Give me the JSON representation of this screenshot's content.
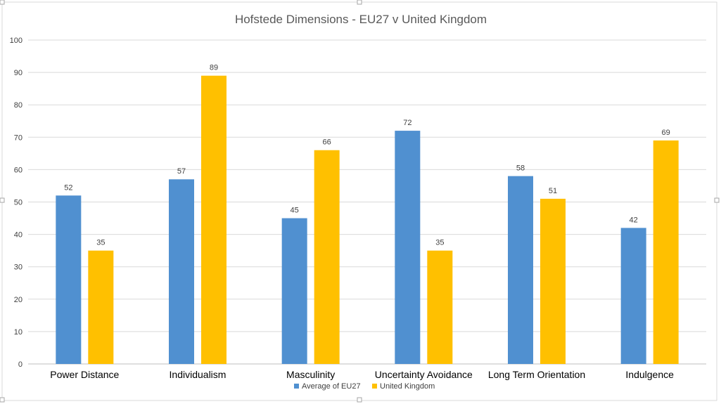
{
  "chart_data": {
    "type": "bar",
    "title": "Hofstede Dimensions - EU27 v United Kingdom",
    "xlabel": "",
    "ylabel": "",
    "ylim": [
      0,
      100
    ],
    "yticks": [
      0,
      10,
      20,
      30,
      40,
      50,
      60,
      70,
      80,
      90,
      100
    ],
    "categories": [
      "Power Distance",
      "Individualism",
      "Masculinity",
      "Uncertainty Avoidance",
      "Long Term Orientation",
      "Indulgence"
    ],
    "series": [
      {
        "name": "Average of EU27",
        "values": [
          52,
          57,
          45,
          72,
          58,
          42
        ],
        "labels": [
          "52",
          "57",
          "45",
          "72",
          "58",
          "42"
        ],
        "color": "#5090D0"
      },
      {
        "name": "United Kingdom",
        "values": [
          35,
          89,
          66,
          35,
          51,
          69
        ],
        "labels": [
          "35",
          "89",
          "66",
          "35",
          "51",
          "69"
        ],
        "color": "#FFC000"
      }
    ],
    "grid": true,
    "legend_position": "bottom",
    "data_labels": true
  }
}
